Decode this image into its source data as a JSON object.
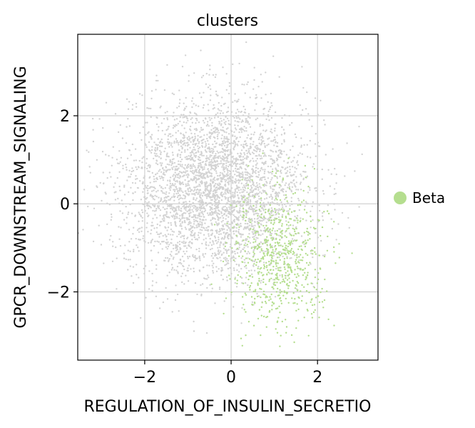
{
  "chart_data": {
    "type": "scatter",
    "title": "clusters",
    "xlabel": "REGULATION_OF_INSULIN_SECRETIO",
    "ylabel": "GPCR_DOWNSTREAM_SIGNALING",
    "xlim": [
      -3.55,
      3.4
    ],
    "ylim": [
      -3.55,
      3.85
    ],
    "xticks": [
      -2,
      0,
      2
    ],
    "xtick_labels": [
      "−2",
      "0",
      "2"
    ],
    "yticks": [
      -2,
      0,
      2
    ],
    "ytick_labels": [
      "−2",
      "0",
      "2"
    ],
    "grid": true,
    "legend_position": "right",
    "series": [
      {
        "name": "",
        "color": "#d3d3d3",
        "cloud": {
          "center": [
            -0.35,
            0.35
          ],
          "spread": [
            1.05,
            1.0
          ],
          "count": 3800
        }
      },
      {
        "name": "Beta",
        "color": "#b5de8f",
        "cloud": {
          "center": [
            1.1,
            -1.2
          ],
          "spread": [
            0.55,
            0.75
          ],
          "count": 700
        }
      }
    ]
  },
  "legend": {
    "items": [
      {
        "label": "Beta",
        "color": "#b5de8f"
      }
    ]
  }
}
